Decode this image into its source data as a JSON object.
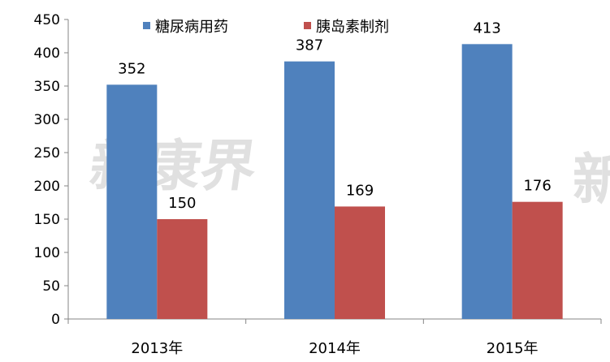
{
  "chart_data": {
    "type": "bar",
    "categories": [
      "2013年",
      "2014年",
      "2015年"
    ],
    "series": [
      {
        "name": "糖尿病用药",
        "values": [
          352,
          387,
          413
        ],
        "color": "#4f81bd"
      },
      {
        "name": "胰岛素制剂",
        "values": [
          150,
          169,
          176
        ],
        "color": "#c0504d"
      }
    ],
    "title": "",
    "xlabel": "",
    "ylabel": "",
    "ylim": [
      0,
      450
    ],
    "yticks": [
      "0",
      "50",
      "100",
      "150",
      "200",
      "250",
      "300",
      "350",
      "400",
      "450"
    ],
    "data_labels": true,
    "grid": false,
    "legend_position": "top"
  },
  "watermark": {
    "text": "新康界"
  }
}
